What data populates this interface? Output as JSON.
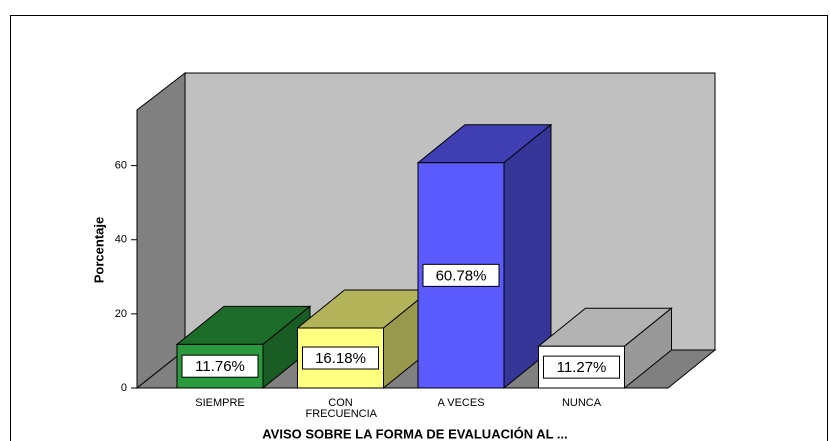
{
  "chart_data": {
    "type": "bar3d",
    "title": "AVISO SOBRE LA FORMA DE EVALUACIÓN AL ...",
    "y_label": "Porcentaje",
    "categories": [
      "SIEMPRE",
      "CON FRECUENCIA",
      "A VECES",
      "NUNCA"
    ],
    "values": [
      11.76,
      16.18,
      60.78,
      11.27
    ],
    "value_labels": [
      "11.76%",
      "16.18%",
      "60.78%",
      "11.27%"
    ],
    "colors": [
      "#2a9a3c",
      "#ffff80",
      "#5a5aff",
      "#ffffff"
    ],
    "ylim": [
      0,
      75
    ],
    "yticks": [
      0,
      20,
      40,
      60
    ]
  }
}
